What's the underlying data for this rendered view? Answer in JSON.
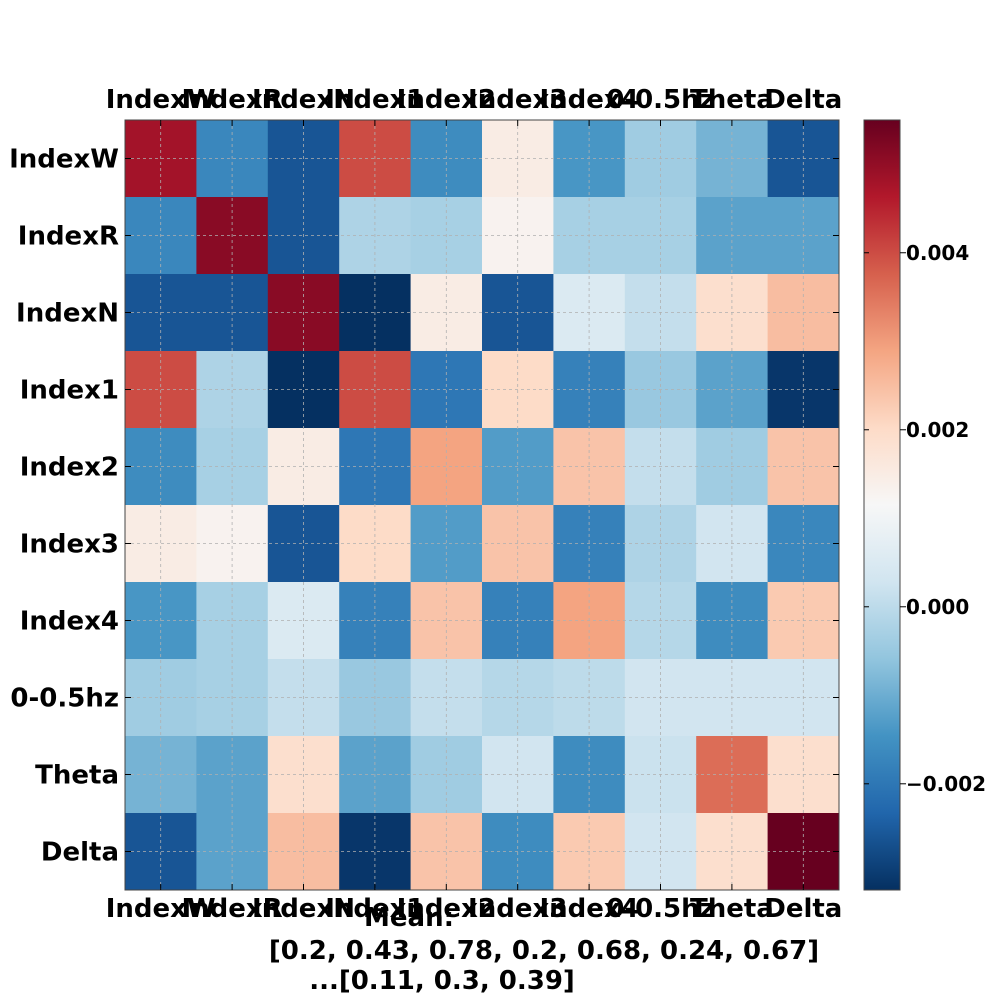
{
  "chart_data": {
    "type": "heatmap",
    "title": "",
    "rows": [
      "IndexW",
      "IndexR",
      "IndexN",
      "Index1",
      "Index2",
      "Index3",
      "Index4",
      "0-0.5hz",
      "Theta",
      "Delta"
    ],
    "cols": [
      "IndexW",
      "IndexR",
      "IndexN",
      "Index1",
      "Index2",
      "Index3",
      "Index4",
      "0-0.5hz",
      "Theta",
      "Delta"
    ],
    "values": [
      [
        0.0048,
        -0.0017,
        -0.0026,
        0.004,
        -0.0016,
        0.0015,
        -0.0014,
        -0.0004,
        -0.0009,
        -0.0026
      ],
      [
        -0.0017,
        0.0051,
        -0.0026,
        -0.0002,
        -0.0003,
        0.0013,
        -0.0003,
        -0.0003,
        -0.0012,
        -0.0012
      ],
      [
        -0.0026,
        -0.0026,
        0.0051,
        -0.0033,
        0.0015,
        -0.0026,
        0.0005,
        0.0001,
        0.0019,
        0.0025
      ],
      [
        0.004,
        -0.0002,
        -0.0033,
        0.004,
        -0.002,
        0.002,
        -0.0018,
        -0.0005,
        -0.0012,
        -0.0031
      ],
      [
        -0.0016,
        -0.0003,
        0.0015,
        -0.002,
        0.0029,
        -0.0013,
        0.0024,
        0.0001,
        -0.0004,
        0.0024
      ],
      [
        0.0015,
        0.0013,
        -0.0026,
        0.002,
        -0.0013,
        0.0024,
        -0.0018,
        -0.0002,
        0.0003,
        -0.0017
      ],
      [
        -0.0014,
        -0.0003,
        0.0005,
        -0.0018,
        0.0024,
        -0.0018,
        0.0029,
        -0.0001,
        -0.0016,
        0.0023
      ],
      [
        -0.0004,
        -0.0003,
        0.0001,
        -0.0005,
        0.0001,
        -0.0001,
        0.0,
        0.0003,
        0.0003,
        0.0003
      ],
      [
        -0.0009,
        -0.0012,
        0.0019,
        -0.0012,
        -0.0004,
        0.0003,
        -0.0016,
        0.0002,
        0.0036,
        0.0019
      ],
      [
        -0.0026,
        -0.0012,
        0.0025,
        -0.0031,
        0.0024,
        -0.0016,
        0.0023,
        0.0003,
        0.0019,
        0.0055
      ]
    ],
    "vmin": -0.0032,
    "vmax": 0.0055,
    "colormap": "RdBu_r",
    "colorbar_ticks": [
      0.004,
      0.002,
      0.0,
      -0.002
    ],
    "colorbar_tick_labels": [
      "0.004",
      "0.002",
      "0.000",
      "−0.002"
    ],
    "xlabel_lines": [
      "Mean:",
      "[0.2, 0.43, 0.78, 0.2, 0.68, 0.24, 0.67]",
      "...[0.11, 0.3, 0.39]"
    ],
    "ylabel": "",
    "grid": true,
    "legend": "none"
  }
}
